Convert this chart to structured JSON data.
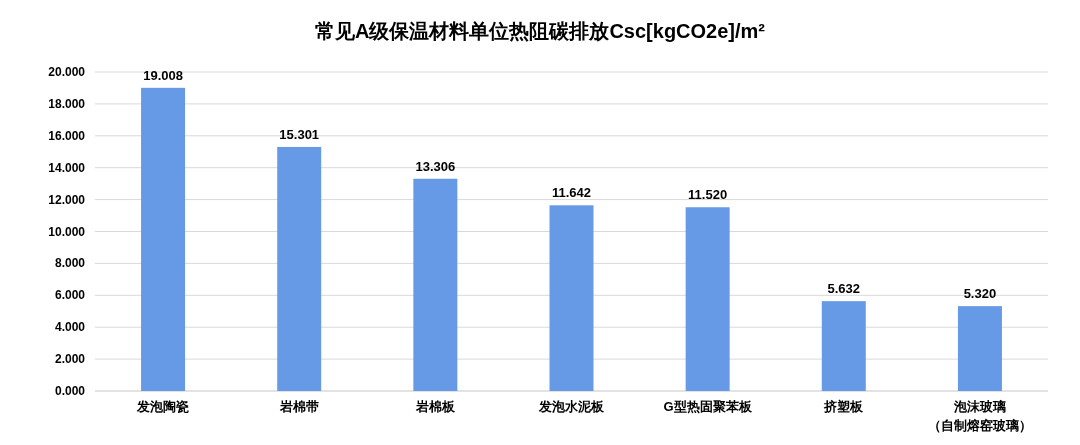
{
  "chart_data": {
    "type": "bar",
    "title": "常见A级保温材料单位热阻碳排放Csc[kgCO2e]/m²",
    "categories": [
      "发泡陶瓷",
      "岩棉带",
      "岩棉板",
      "发泡水泥板",
      "G型热固聚苯板",
      "挤塑板",
      "泡沫玻璃（自制熔窑玻璃）"
    ],
    "values": [
      19.008,
      15.301,
      13.306,
      11.642,
      11.52,
      5.632,
      5.32
    ],
    "value_labels": [
      "19.008",
      "15.301",
      "13.306",
      "11.642",
      "11.520",
      "5.632",
      "5.320"
    ],
    "color": "#6699e6",
    "ylim": [
      0,
      20
    ],
    "yticks": [
      {
        "value": 0,
        "label": "0.000"
      },
      {
        "value": 2,
        "label": "2.000"
      },
      {
        "value": 4,
        "label": "4.000"
      },
      {
        "value": 6,
        "label": "6.000"
      },
      {
        "value": 8,
        "label": "8.000"
      },
      {
        "value": 10,
        "label": "10.000"
      },
      {
        "value": 12,
        "label": "12.000"
      },
      {
        "value": 14,
        "label": "14.000"
      },
      {
        "value": 16,
        "label": "16.000"
      },
      {
        "value": 18,
        "label": "18.000"
      },
      {
        "value": 20,
        "label": "20.000"
      }
    ],
    "grid": "y"
  }
}
